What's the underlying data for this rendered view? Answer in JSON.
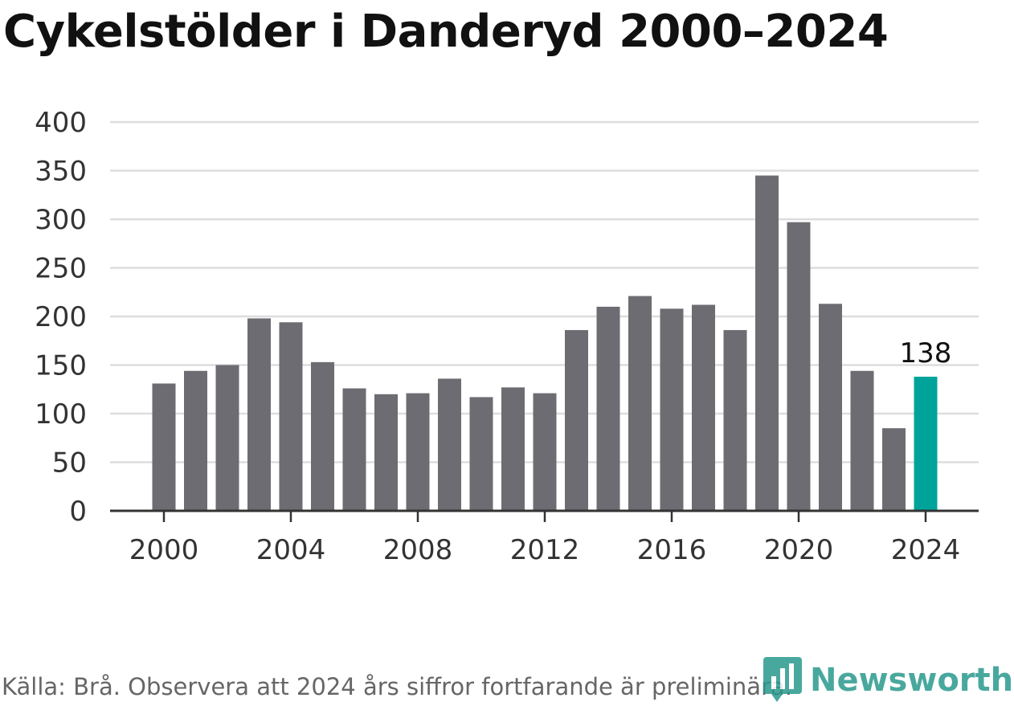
{
  "title": "Cykelstölder i Danderyd 2000–2024",
  "source": "Källa: Brå. Observera att 2024 års siffror fortfarande är preliminära.",
  "brand": {
    "name": "Newsworthy",
    "icon": "newsworthy-logo-icon",
    "color": "#2a9a8e"
  },
  "chart_data": {
    "type": "bar",
    "categories": [
      "2000",
      "2001",
      "2002",
      "2003",
      "2004",
      "2005",
      "2006",
      "2007",
      "2008",
      "2009",
      "2010",
      "2011",
      "2012",
      "2013",
      "2014",
      "2015",
      "2016",
      "2017",
      "2018",
      "2019",
      "2020",
      "2021",
      "2022",
      "2023",
      "2024"
    ],
    "values": [
      131,
      144,
      150,
      198,
      194,
      153,
      126,
      120,
      121,
      136,
      117,
      127,
      121,
      186,
      210,
      221,
      208,
      212,
      186,
      345,
      297,
      213,
      144,
      85,
      138
    ],
    "title": "Cykelstölder i Danderyd 2000–2024",
    "xlabel": "",
    "ylabel": "",
    "ylim": [
      0,
      400
    ],
    "yticks": [
      "0",
      "50",
      "100",
      "150",
      "200",
      "250",
      "300",
      "350",
      "400"
    ],
    "xticks": [
      "2000",
      "2004",
      "2008",
      "2012",
      "2016",
      "2020",
      "2024"
    ],
    "highlight": {
      "category": "2024",
      "label": "138"
    },
    "colors": {
      "bar": "#6d6c72",
      "highlight": "#00a39a",
      "grid": "#dddddd",
      "axis": "#333333"
    },
    "grid": true,
    "legend": "none"
  }
}
